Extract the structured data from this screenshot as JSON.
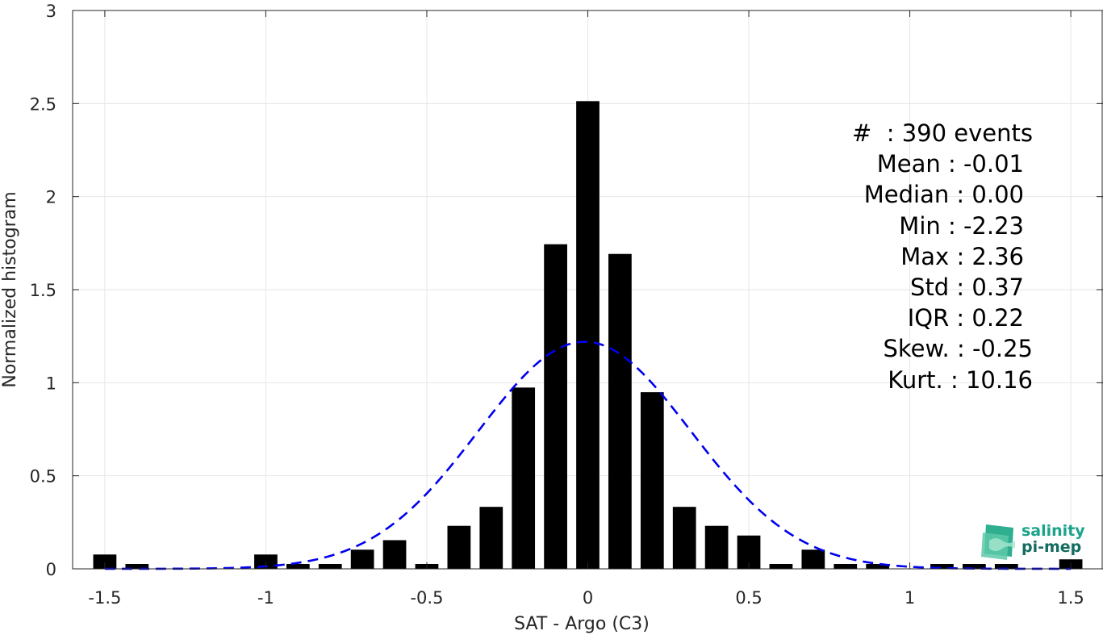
{
  "chart_data": {
    "type": "bar",
    "xlabel": "SAT - Argo (C3)",
    "ylabel": "Normalized histogram",
    "xlim": [
      -1.6,
      1.6
    ],
    "ylim": [
      0,
      3
    ],
    "xticks": [
      "-1.5",
      "-1",
      "-0.5",
      "0",
      "0.5",
      "1",
      "1.5"
    ],
    "xtick_values": [
      -1.5,
      -1,
      -0.5,
      0,
      0.5,
      1,
      1.5
    ],
    "yticks": [
      "0",
      "0.5",
      "1",
      "1.5",
      "2",
      "2.5",
      "3"
    ],
    "ytick_values": [
      0,
      0.5,
      1,
      1.5,
      2,
      2.5,
      3
    ],
    "grid": true,
    "bar_color": "#000000",
    "bins": {
      "x": [
        -1.5,
        -1.4,
        -1.0,
        -0.9,
        -0.8,
        -0.7,
        -0.6,
        -0.5,
        -0.4,
        -0.3,
        -0.2,
        -0.1,
        0.0,
        0.1,
        0.2,
        0.3,
        0.4,
        0.5,
        0.6,
        0.7,
        0.8,
        0.9,
        1.1,
        1.2,
        1.3,
        1.5
      ],
      "values": [
        0.077,
        0.026,
        0.077,
        0.026,
        0.026,
        0.103,
        0.154,
        0.026,
        0.231,
        0.333,
        0.974,
        1.744,
        2.513,
        1.692,
        0.949,
        0.333,
        0.231,
        0.179,
        0.026,
        0.103,
        0.026,
        0.026,
        0.026,
        0.026,
        0.026,
        0.051
      ]
    },
    "fit": {
      "type": "normal",
      "mean": -0.01,
      "std": 0.33,
      "peak": 1.22,
      "color": "#0000ee",
      "style": "dashed"
    },
    "annotation": [
      "#  : 390 events",
      "Mean : -0.01",
      "Median : 0.00",
      "Min : -2.23",
      "Max : 2.36",
      "Std : 0.37",
      "IQR : 0.22",
      "Skew. : -0.25",
      "Kurt. : 10.16"
    ]
  },
  "logo": {
    "line1": "salinity",
    "line2": "pi-mep"
  }
}
